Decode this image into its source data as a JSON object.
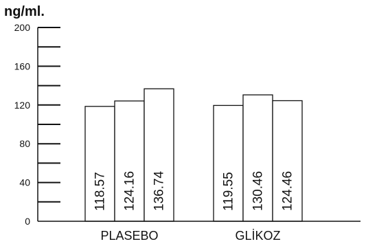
{
  "chart_data": {
    "type": "bar",
    "ylabel": "ng/ml.",
    "ylim": [
      0,
      200
    ],
    "y_tick_labels": [
      "0",
      "40",
      "80",
      "120",
      "160",
      "200"
    ],
    "y_ticks_minor": [
      20,
      60,
      100,
      140,
      180
    ],
    "categories": [
      "PLASEBO",
      "GLİKOZ"
    ],
    "series_values": [
      [
        118.57,
        124.16,
        136.74
      ],
      [
        119.55,
        130.46,
        124.46
      ]
    ],
    "data_labels": [
      [
        "118.57",
        "124.16",
        "136.74"
      ],
      [
        "119.55",
        "130.46",
        "124.46"
      ]
    ],
    "grid": false,
    "legend": "none"
  }
}
